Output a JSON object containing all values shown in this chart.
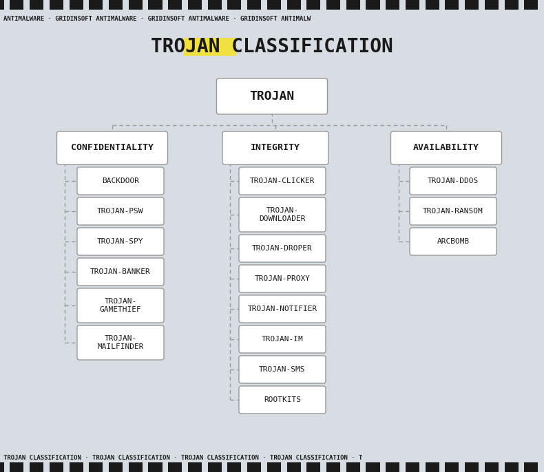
{
  "bg_color": "#d8dde4",
  "header_text": "ANTIMALWARE · GRIDINSOFT ANTIMALWARE · GRIDINSOFT ANTIMALWARE · GRIDINSOFT ANTIMALW",
  "footer_text": "TROJAN CLASSIFICATION · TROJAN CLASSIFICATION · TROJAN CLASSIFICATION · TROJAN CLASSIFICATION · T",
  "root_label": "TROJAN",
  "confidentiality_items": [
    "BACKDOOR",
    "TROJAN-PSW",
    "TROJAN-SPY",
    "TROJAN-BANKER",
    "TROJAN-\nGAMETHIEF",
    "TROJAN-\nMAILFINDER"
  ],
  "integrity_items": [
    "TROJAN-CLICKER",
    "TROJAN-\nDOWNLOADER",
    "TROJAN-DROPER",
    "TROJAN-PROXY",
    "TROJAN-NOTIFIER",
    "TROJAN-IM",
    "TROJAN-SMS",
    "ROOTKITS"
  ],
  "availability_items": [
    "TROJAN-DDOS",
    "TROJAN-RANSOM",
    "ARCBOMB"
  ],
  "box_facecolor": "#ffffff",
  "box_edgecolor": "#999999",
  "line_color": "#999999",
  "font_color": "#1a1a1a",
  "yellow_color": "#f0e040",
  "stripe_color": "#1a1a1a"
}
